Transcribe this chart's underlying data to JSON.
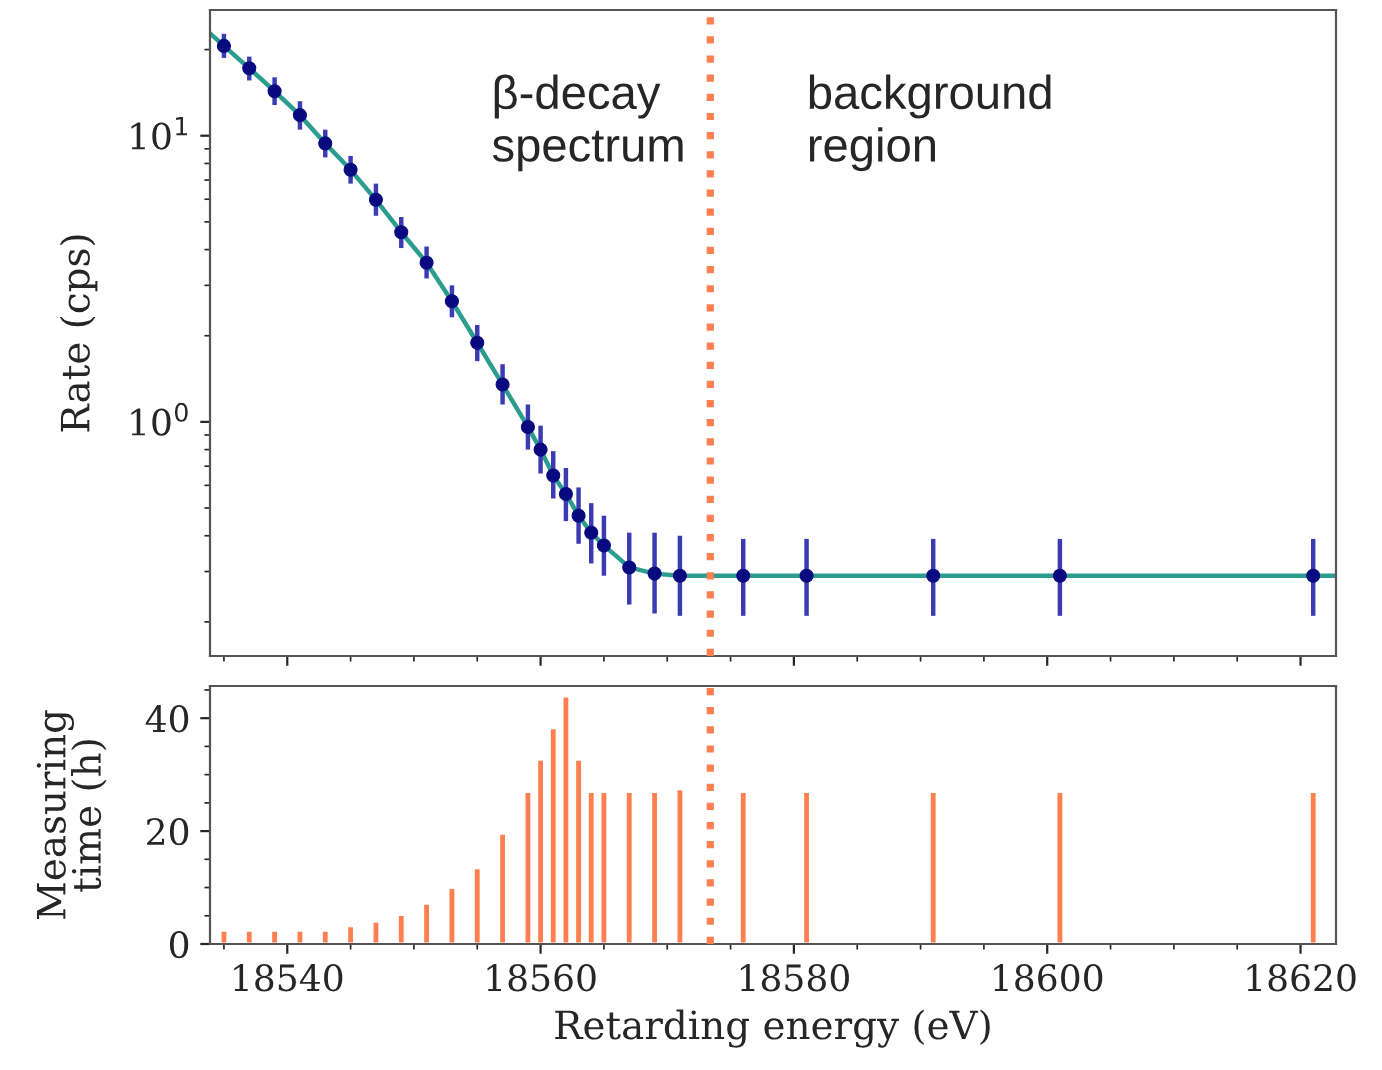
{
  "chart_data": [
    {
      "type": "scatter",
      "ylabel": "Rate (cps)",
      "log": "y",
      "tick_labels": "y",
      "xlim": [
        18533.9,
        18622.8
      ],
      "xticks": [
        {
          "value": 18540,
          "label": null
        },
        {
          "value": 18560,
          "label": null
        },
        {
          "value": 18580,
          "label": null
        },
        {
          "value": 18600,
          "label": null
        },
        {
          "value": 18620,
          "label": null
        }
      ],
      "ylim": [
        0.152,
        27.5
      ],
      "yticks": [
        {
          "value": 1,
          "label": "10$^{0}$"
        },
        {
          "value": 10,
          "label": "10$^{1}$"
        }
      ],
      "series": [
        {
          "type": "scatter",
          "marker": "circle",
          "color": "#0a0a80",
          "x": [
            18535,
            18537,
            18539,
            18541,
            18543,
            18545,
            18547,
            18549,
            18551,
            18553,
            18555,
            18557,
            18559,
            18560,
            18561,
            18562,
            18563,
            18564,
            18565,
            18567,
            18569,
            18571,
            18576,
            18581,
            18591,
            18601,
            18621
          ],
          "values": [
            20.6,
            17.2,
            14.3,
            11.8,
            9.4,
            7.6,
            5.97,
            4.6,
            3.6,
            2.64,
            1.89,
            1.35,
            0.96,
            0.8,
            0.65,
            0.56,
            0.47,
            0.41,
            0.37,
            0.31,
            0.295,
            0.29,
            0.29,
            0.29,
            0.29,
            0.29,
            0.29
          ],
          "errors": [
            [
              18.7,
              22.7
            ],
            [
              15.6,
              18.9
            ],
            [
              12.8,
              16.0
            ],
            [
              10.5,
              13.2
            ],
            [
              8.4,
              10.5
            ],
            [
              6.8,
              8.5
            ],
            [
              5.25,
              6.8
            ],
            [
              4.05,
              5.2
            ],
            [
              3.17,
              4.1
            ],
            [
              2.32,
              3.0
            ],
            [
              1.63,
              2.18
            ],
            [
              1.15,
              1.59
            ],
            [
              0.8,
              1.15
            ],
            [
              0.66,
              0.97
            ],
            [
              0.54,
              0.79
            ],
            [
              0.45,
              0.69
            ],
            [
              0.375,
              0.59
            ],
            [
              0.32,
              0.52
            ],
            [
              0.29,
              0.47
            ],
            [
              0.23,
              0.41
            ],
            [
              0.214,
              0.41
            ],
            [
              0.21,
              0.4
            ],
            [
              0.21,
              0.39
            ],
            [
              0.21,
              0.39
            ],
            [
              0.21,
              0.39
            ],
            [
              0.21,
              0.39
            ],
            [
              0.21,
              0.39
            ]
          ]
        },
        {
          "type": "line",
          "color": "#2a9d8f",
          "x": [
            18533.9,
            18535,
            18537,
            18539,
            18541,
            18543,
            18545,
            18547,
            18549,
            18551,
            18553,
            18555,
            18557,
            18559,
            18560,
            18561,
            18562,
            18563,
            18564,
            18565,
            18567,
            18569,
            18571,
            18576,
            18622.8
          ],
          "values": [
            22.8,
            20.6,
            17.2,
            14.3,
            11.8,
            9.4,
            7.6,
            5.97,
            4.6,
            3.6,
            2.64,
            1.89,
            1.35,
            0.96,
            0.8,
            0.65,
            0.56,
            0.47,
            0.41,
            0.37,
            0.31,
            0.295,
            0.29,
            0.29,
            0.29
          ]
        }
      ],
      "ref_lines": [
        {
          "axis": "x",
          "value": 18573.4,
          "color": "#ff7f50",
          "line_style": "dotted"
        }
      ],
      "annotations": [
        "β-decay\nspectrum",
        "background\nregion"
      ]
    },
    {
      "type": "bar",
      "xlabel": "Retarding energy (eV)",
      "ylabel": "Measuring\ntime (h)",
      "xlim": [
        18533.9,
        18622.8
      ],
      "xticks": [
        18540,
        18560,
        18580,
        18600,
        18620
      ],
      "ylim": [
        0,
        45.7
      ],
      "yticks": [
        0,
        20,
        40
      ],
      "series": [
        {
          "color": "#ff7f50",
          "x": [
            18535,
            18537,
            18539,
            18541,
            18543,
            18545,
            18547,
            18549,
            18551,
            18553,
            18555,
            18557,
            18559,
            18560,
            18561,
            18562,
            18563,
            18564,
            18565,
            18567,
            18569,
            18571,
            18576,
            18581,
            18591,
            18601,
            18621
          ],
          "values": [
            2.4,
            2.4,
            2.4,
            2.4,
            2.4,
            3.2,
            4,
            5.2,
            7.2,
            10,
            13.5,
            19.6,
            27,
            32.7,
            38.3,
            43.9,
            32.7,
            27,
            27,
            27,
            27,
            27.5,
            27,
            27,
            27,
            27,
            27
          ]
        }
      ],
      "ref_lines": [
        {
          "axis": "x",
          "value": 18573.4,
          "color": "#ff7f50",
          "line_style": "dotted"
        }
      ]
    }
  ]
}
